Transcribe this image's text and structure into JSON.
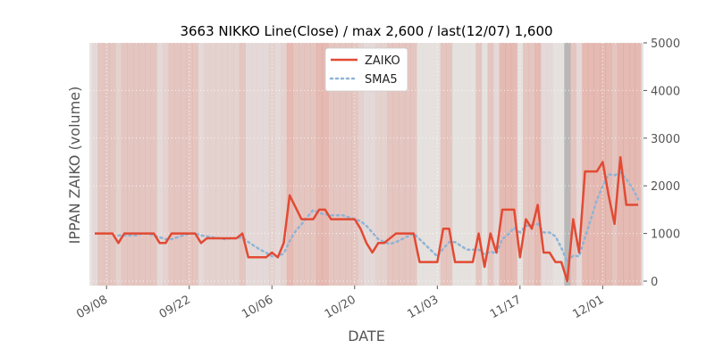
{
  "chart_data": {
    "type": "line",
    "title": "3663 NIKKO Line(Close) / max 2,600 / last(12/07) 1,600",
    "xlabel": "DATE",
    "ylabel": "IPPAN ZAIKO (volume)",
    "ylim": [
      0,
      5000
    ],
    "yticks": [
      0,
      1000,
      2000,
      3000,
      4000,
      5000
    ],
    "ytick_labels": [
      "0",
      "1000",
      "2000",
      "3000",
      "4000",
      "5000"
    ],
    "x_start": "09/06",
    "x_end": "12/07",
    "xticks": [
      {
        "day": 2,
        "label": "09/08"
      },
      {
        "day": 16,
        "label": "09/22"
      },
      {
        "day": 30,
        "label": "10/06"
      },
      {
        "day": 44,
        "label": "10/20"
      },
      {
        "day": 58,
        "label": "11/03"
      },
      {
        "day": 72,
        "label": "11/17"
      },
      {
        "day": 86,
        "label": "12/01"
      }
    ],
    "legend_position": "top-center",
    "series": [
      {
        "name": "ZAIKO",
        "color": "#e24a33",
        "style": "solid",
        "points": [
          [
            0,
            1000
          ],
          [
            1,
            1000
          ],
          [
            2,
            1000
          ],
          [
            3,
            1000
          ],
          [
            4,
            800
          ],
          [
            5,
            1000
          ],
          [
            6,
            1000
          ],
          [
            7,
            1000
          ],
          [
            8,
            1000
          ],
          [
            9,
            1000
          ],
          [
            10,
            1000
          ],
          [
            11,
            800
          ],
          [
            12,
            800
          ],
          [
            13,
            1000
          ],
          [
            14,
            1000
          ],
          [
            15,
            1000
          ],
          [
            16,
            1000
          ],
          [
            17,
            1000
          ],
          [
            18,
            800
          ],
          [
            19,
            900
          ],
          [
            20,
            900
          ],
          [
            21,
            900
          ],
          [
            22,
            900
          ],
          [
            23,
            900
          ],
          [
            24,
            900
          ],
          [
            25,
            1000
          ],
          [
            26,
            500
          ],
          [
            27,
            500
          ],
          [
            28,
            500
          ],
          [
            29,
            500
          ],
          [
            30,
            600
          ],
          [
            31,
            500
          ],
          [
            32,
            800
          ],
          [
            33,
            1800
          ],
          [
            34,
            1550
          ],
          [
            35,
            1300
          ],
          [
            36,
            1300
          ],
          [
            37,
            1300
          ],
          [
            38,
            1500
          ],
          [
            39,
            1500
          ],
          [
            40,
            1300
          ],
          [
            41,
            1300
          ],
          [
            42,
            1300
          ],
          [
            43,
            1300
          ],
          [
            44,
            1300
          ],
          [
            45,
            1100
          ],
          [
            46,
            800
          ],
          [
            47,
            600
          ],
          [
            48,
            800
          ],
          [
            49,
            800
          ],
          [
            50,
            900
          ],
          [
            51,
            1000
          ],
          [
            52,
            1000
          ],
          [
            53,
            1000
          ],
          [
            54,
            1000
          ],
          [
            55,
            400
          ],
          [
            56,
            400
          ],
          [
            57,
            400
          ],
          [
            58,
            400
          ],
          [
            59,
            1100
          ],
          [
            60,
            1100
          ],
          [
            61,
            400
          ],
          [
            62,
            400
          ],
          [
            63,
            400
          ],
          [
            64,
            400
          ],
          [
            65,
            1000
          ],
          [
            66,
            300
          ],
          [
            67,
            1000
          ],
          [
            68,
            600
          ],
          [
            69,
            1500
          ],
          [
            70,
            1500
          ],
          [
            71,
            1500
          ],
          [
            72,
            500
          ],
          [
            73,
            1300
          ],
          [
            74,
            1100
          ],
          [
            75,
            1600
          ],
          [
            76,
            600
          ],
          [
            77,
            600
          ],
          [
            78,
            400
          ],
          [
            79,
            400
          ],
          [
            80,
            0
          ],
          [
            81,
            1300
          ],
          [
            82,
            600
          ],
          [
            83,
            2300
          ],
          [
            84,
            2300
          ],
          [
            85,
            2300
          ],
          [
            86,
            2500
          ],
          [
            87,
            1800
          ],
          [
            88,
            1200
          ],
          [
            89,
            2600
          ],
          [
            90,
            1600
          ],
          [
            91,
            1600
          ],
          [
            92,
            1600
          ]
        ]
      },
      {
        "name": "SMA5",
        "color": "#8eb4d6",
        "style": "dotted",
        "points": [
          [
            4,
            960
          ],
          [
            5,
            960
          ],
          [
            6,
            960
          ],
          [
            7,
            960
          ],
          [
            8,
            1000
          ],
          [
            9,
            1000
          ],
          [
            10,
            960
          ],
          [
            11,
            920
          ],
          [
            12,
            880
          ],
          [
            13,
            880
          ],
          [
            14,
            920
          ],
          [
            15,
            960
          ],
          [
            16,
            1000
          ],
          [
            17,
            1000
          ],
          [
            18,
            960
          ],
          [
            19,
            940
          ],
          [
            20,
            920
          ],
          [
            21,
            900
          ],
          [
            22,
            880
          ],
          [
            23,
            900
          ],
          [
            24,
            900
          ],
          [
            25,
            920
          ],
          [
            26,
            820
          ],
          [
            27,
            740
          ],
          [
            28,
            660
          ],
          [
            29,
            600
          ],
          [
            30,
            520
          ],
          [
            31,
            520
          ],
          [
            32,
            580
          ],
          [
            33,
            840
          ],
          [
            34,
            1050
          ],
          [
            35,
            1190
          ],
          [
            36,
            1350
          ],
          [
            37,
            1490
          ],
          [
            38,
            1430
          ],
          [
            39,
            1400
          ],
          [
            40,
            1380
          ],
          [
            41,
            1380
          ],
          [
            42,
            1380
          ],
          [
            43,
            1340
          ],
          [
            44,
            1300
          ],
          [
            45,
            1260
          ],
          [
            46,
            1160
          ],
          [
            47,
            1020
          ],
          [
            48,
            880
          ],
          [
            49,
            820
          ],
          [
            50,
            780
          ],
          [
            51,
            820
          ],
          [
            52,
            880
          ],
          [
            53,
            940
          ],
          [
            54,
            1000
          ],
          [
            55,
            880
          ],
          [
            56,
            760
          ],
          [
            57,
            640
          ],
          [
            58,
            520
          ],
          [
            59,
            680
          ],
          [
            60,
            820
          ],
          [
            61,
            820
          ],
          [
            62,
            740
          ],
          [
            63,
            660
          ],
          [
            64,
            660
          ],
          [
            65,
            660
          ],
          [
            66,
            560
          ],
          [
            67,
            620
          ],
          [
            68,
            580
          ],
          [
            69,
            880
          ],
          [
            70,
            980
          ],
          [
            71,
            1120
          ],
          [
            72,
            1020
          ],
          [
            73,
            1160
          ],
          [
            74,
            1180
          ],
          [
            75,
            1200
          ],
          [
            76,
            1020
          ],
          [
            77,
            1020
          ],
          [
            78,
            940
          ],
          [
            79,
            700
          ],
          [
            80,
            400
          ],
          [
            81,
            540
          ],
          [
            82,
            520
          ],
          [
            83,
            920
          ],
          [
            84,
            1300
          ],
          [
            85,
            1700
          ],
          [
            86,
            2000
          ],
          [
            87,
            2240
          ],
          [
            88,
            2220
          ],
          [
            89,
            2280
          ],
          [
            90,
            2140
          ],
          [
            91,
            1960
          ],
          [
            92,
            1720
          ]
        ]
      }
    ],
    "bands": [
      [
        0,
        0.07,
        0
      ],
      [
        1,
        0.2,
        0
      ],
      [
        2,
        0.2,
        0
      ],
      [
        3,
        0.2,
        0
      ],
      [
        4,
        0.12,
        0
      ],
      [
        5,
        0.2,
        0
      ],
      [
        6,
        0.2,
        0
      ],
      [
        7,
        0.2,
        0
      ],
      [
        8,
        0.2,
        0
      ],
      [
        9,
        0.2,
        0
      ],
      [
        10,
        0.2,
        0
      ],
      [
        11,
        0.07,
        0
      ],
      [
        12,
        0.12,
        0
      ],
      [
        13,
        0.2,
        0
      ],
      [
        14,
        0.2,
        0
      ],
      [
        15,
        0.2,
        0
      ],
      [
        16,
        0.2,
        0
      ],
      [
        17,
        0.2,
        0
      ],
      [
        18,
        0.07,
        0
      ],
      [
        19,
        0.12,
        0
      ],
      [
        20,
        0.12,
        0
      ],
      [
        21,
        0.12,
        0
      ],
      [
        22,
        0.12,
        0
      ],
      [
        23,
        0.12,
        0
      ],
      [
        24,
        0.12,
        0
      ],
      [
        25,
        0.2,
        0
      ],
      [
        26,
        0.07,
        0
      ],
      [
        27,
        0.07,
        0
      ],
      [
        28,
        0.07,
        0
      ],
      [
        29,
        0.07,
        0
      ],
      [
        30,
        0.12,
        0
      ],
      [
        31,
        0.07,
        0
      ],
      [
        32,
        0.12,
        0
      ],
      [
        33,
        0.28,
        0
      ],
      [
        34,
        0.2,
        0
      ],
      [
        35,
        0.2,
        0
      ],
      [
        36,
        0.2,
        0
      ],
      [
        37,
        0.2,
        0
      ],
      [
        38,
        0.28,
        0
      ],
      [
        39,
        0.28,
        0
      ],
      [
        40,
        0.2,
        0
      ],
      [
        41,
        0.2,
        0
      ],
      [
        42,
        0.2,
        0
      ],
      [
        43,
        0.2,
        0
      ],
      [
        44,
        0.2,
        0
      ],
      [
        45,
        0.12,
        0
      ],
      [
        46,
        0.07,
        0
      ],
      [
        47,
        0.07,
        0
      ],
      [
        48,
        0.12,
        0
      ],
      [
        49,
        0.12,
        0
      ],
      [
        50,
        0.2,
        0
      ],
      [
        51,
        0.2,
        0
      ],
      [
        52,
        0.2,
        0
      ],
      [
        53,
        0.2,
        0
      ],
      [
        54,
        0.2,
        0
      ],
      [
        55,
        0.1,
        1
      ],
      [
        56,
        0.1,
        1
      ],
      [
        57,
        0.1,
        1
      ],
      [
        58,
        0.1,
        1
      ],
      [
        59,
        0.2,
        0
      ],
      [
        60,
        0.2,
        0
      ],
      [
        61,
        0.1,
        1
      ],
      [
        62,
        0.1,
        1
      ],
      [
        63,
        0.1,
        1
      ],
      [
        64,
        0.1,
        1
      ],
      [
        65,
        0.2,
        0
      ],
      [
        66,
        0.1,
        1
      ],
      [
        67,
        0.2,
        0
      ],
      [
        68,
        0.07,
        0
      ],
      [
        69,
        0.28,
        0
      ],
      [
        70,
        0.28,
        0
      ],
      [
        71,
        0.28,
        0
      ],
      [
        72,
        0.1,
        1
      ],
      [
        73,
        0.2,
        0
      ],
      [
        74,
        0.2,
        0
      ],
      [
        75,
        0.28,
        0
      ],
      [
        76,
        0.07,
        0
      ],
      [
        77,
        0.07,
        0
      ],
      [
        78,
        0.1,
        1
      ],
      [
        79,
        0.1,
        1
      ],
      [
        80,
        0.5,
        2
      ],
      [
        81,
        0.2,
        0
      ],
      [
        82,
        0.07,
        0
      ],
      [
        83,
        0.28,
        0
      ],
      [
        84,
        0.28,
        0
      ],
      [
        85,
        0.28,
        0
      ],
      [
        86,
        0.28,
        0
      ],
      [
        87,
        0.28,
        0
      ],
      [
        88,
        0.2,
        0
      ],
      [
        89,
        0.28,
        0
      ],
      [
        90,
        0.28,
        0
      ],
      [
        91,
        0.28,
        0
      ],
      [
        92,
        0.28,
        0
      ]
    ]
  }
}
